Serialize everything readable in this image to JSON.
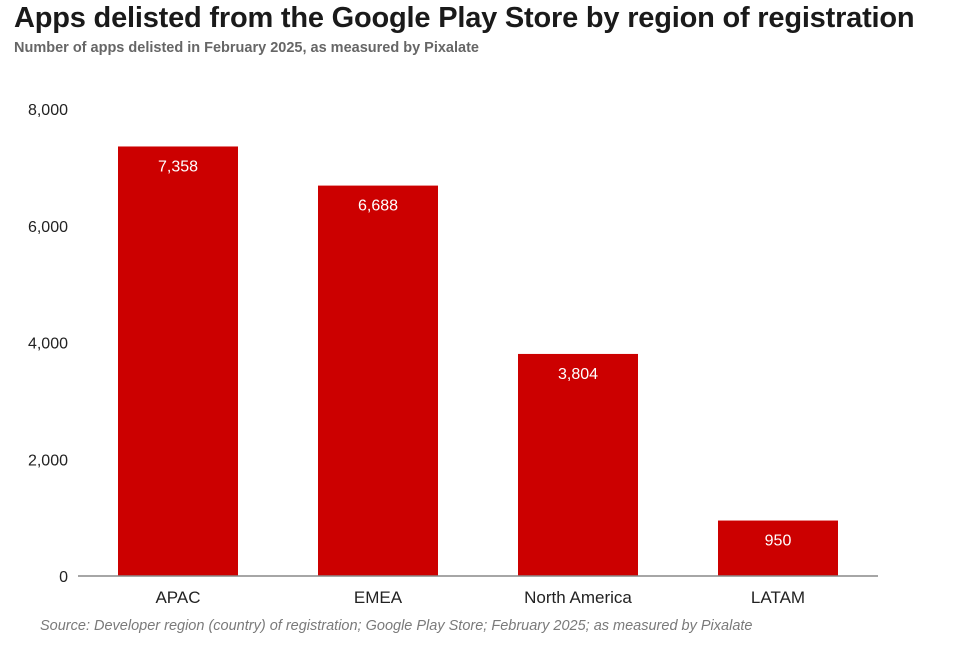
{
  "title": "Apps delisted from the Google Play Store by region of registration",
  "subtitle": "Number of apps delisted in February 2025, as measured by Pixalate",
  "source": "Source: Developer region (country) of registration; Google Play Store; February 2025; as measured by Pixalate",
  "colors": {
    "bar": "#cc0000",
    "bar_label": "#ffffff",
    "axis_text": "#222222",
    "baseline": "#888888"
  },
  "chart_data": {
    "type": "bar",
    "title": "Apps delisted from the Google Play Store by region of registration",
    "subtitle": "Number of apps delisted in February 2025, as measured by Pixalate",
    "categories": [
      "APAC",
      "EMEA",
      "North America",
      "LATAM"
    ],
    "values": [
      7358,
      6688,
      3804,
      950
    ],
    "value_labels": [
      "7,358",
      "6,688",
      "3,804",
      "950"
    ],
    "xlabel": "",
    "ylabel": "",
    "ylim": [
      0,
      8000
    ],
    "yticks": [
      0,
      2000,
      4000,
      6000,
      8000
    ],
    "ytick_labels": [
      "0",
      "2,000",
      "4,000",
      "6,000",
      "8,000"
    ],
    "grid": false,
    "legend": "none"
  }
}
